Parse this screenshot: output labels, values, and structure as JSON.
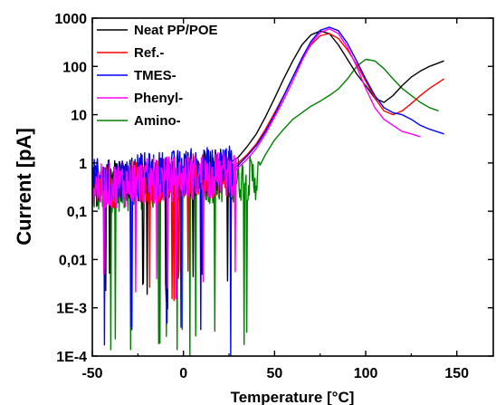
{
  "chart_data": {
    "type": "line",
    "xlabel": "Temperature [°C]",
    "ylabel": "Current [pA]",
    "xlim": [
      -50,
      170
    ],
    "ylim": [
      0.0001,
      1000
    ],
    "y_scale": "log",
    "x_ticks": [
      -50,
      0,
      50,
      100,
      150
    ],
    "y_ticks": [
      {
        "value": 0.0001,
        "label": "1E-4"
      },
      {
        "value": 0.001,
        "label": "1E-3"
      },
      {
        "value": 0.01,
        "label": "0,01"
      },
      {
        "value": 0.1,
        "label": "0,1"
      },
      {
        "value": 1,
        "label": "1"
      },
      {
        "value": 10,
        "label": "10"
      },
      {
        "value": 100,
        "label": "100"
      },
      {
        "value": 1000,
        "label": "1000"
      }
    ],
    "grid": false,
    "legend_position": "top-left",
    "series": [
      {
        "name": "Neat PP/POE",
        "color": "#000000",
        "noisy_region": {
          "x_start": -50,
          "x_end": 25,
          "level": 0.35,
          "min_dips": 0.0015
        },
        "x": [
          25,
          30,
          35,
          40,
          45,
          50,
          55,
          60,
          65,
          70,
          75,
          80,
          85,
          90,
          95,
          100,
          105,
          110,
          115,
          120,
          125,
          130,
          135,
          143
        ],
        "y": [
          1.0,
          1.3,
          2.2,
          4.0,
          9,
          22,
          55,
          130,
          280,
          450,
          540,
          480,
          280,
          140,
          70,
          40,
          22,
          18,
          25,
          40,
          60,
          80,
          100,
          130
        ]
      },
      {
        "name": "Ref.-",
        "color": "#ff0000",
        "noisy_region": {
          "x_start": -50,
          "x_end": 27,
          "level": 0.3,
          "min_dips": 0.002
        },
        "x": [
          27,
          30,
          35,
          40,
          45,
          50,
          55,
          60,
          65,
          70,
          75,
          80,
          85,
          90,
          95,
          100,
          105,
          110,
          115,
          120,
          125,
          130,
          135,
          143
        ],
        "y": [
          0.9,
          1.0,
          1.5,
          2.5,
          5,
          11,
          25,
          60,
          140,
          280,
          430,
          480,
          380,
          220,
          110,
          50,
          22,
          12,
          10,
          12,
          17,
          25,
          35,
          55
        ]
      },
      {
        "name": "TMES-",
        "color": "#0000ff",
        "noisy_region": {
          "x_start": -50,
          "x_end": 28,
          "level": 0.4,
          "min_dips": 0.00015
        },
        "x": [
          28,
          30,
          35,
          40,
          45,
          50,
          55,
          60,
          65,
          70,
          75,
          80,
          85,
          90,
          95,
          100,
          105,
          110,
          115,
          120,
          125,
          130,
          135,
          143
        ],
        "y": [
          0.8,
          0.9,
          1.4,
          2.3,
          4.5,
          10,
          24,
          60,
          150,
          330,
          560,
          650,
          550,
          300,
          130,
          55,
          25,
          14,
          11,
          10,
          8,
          6,
          5,
          4
        ]
      },
      {
        "name": "Phenyl-",
        "color": "#ff00ff",
        "noisy_region": {
          "x_start": -50,
          "x_end": 29,
          "level": 0.3,
          "min_dips": 0.002
        },
        "x": [
          29,
          30,
          35,
          40,
          45,
          50,
          55,
          60,
          65,
          70,
          75,
          80,
          85,
          90,
          95,
          100,
          105,
          110,
          115,
          120,
          125,
          130
        ],
        "y": [
          0.7,
          0.8,
          1.2,
          2.0,
          4,
          9,
          20,
          50,
          130,
          300,
          500,
          600,
          480,
          250,
          100,
          35,
          14,
          8,
          6,
          4.5,
          4,
          3.5
        ]
      },
      {
        "name": "Amino-",
        "color": "#008000",
        "noisy_region": {
          "x_start": -50,
          "x_end": 42,
          "level": 0.25,
          "min_dips": 0.0001
        },
        "x": [
          42,
          45,
          50,
          55,
          60,
          65,
          70,
          75,
          80,
          85,
          90,
          95,
          100,
          105,
          110,
          115,
          120,
          125,
          130,
          135,
          140
        ],
        "y": [
          0.9,
          1.5,
          3,
          5,
          8,
          11,
          15,
          19,
          25,
          34,
          55,
          100,
          140,
          130,
          90,
          55,
          35,
          25,
          18,
          14,
          12
        ]
      }
    ]
  }
}
